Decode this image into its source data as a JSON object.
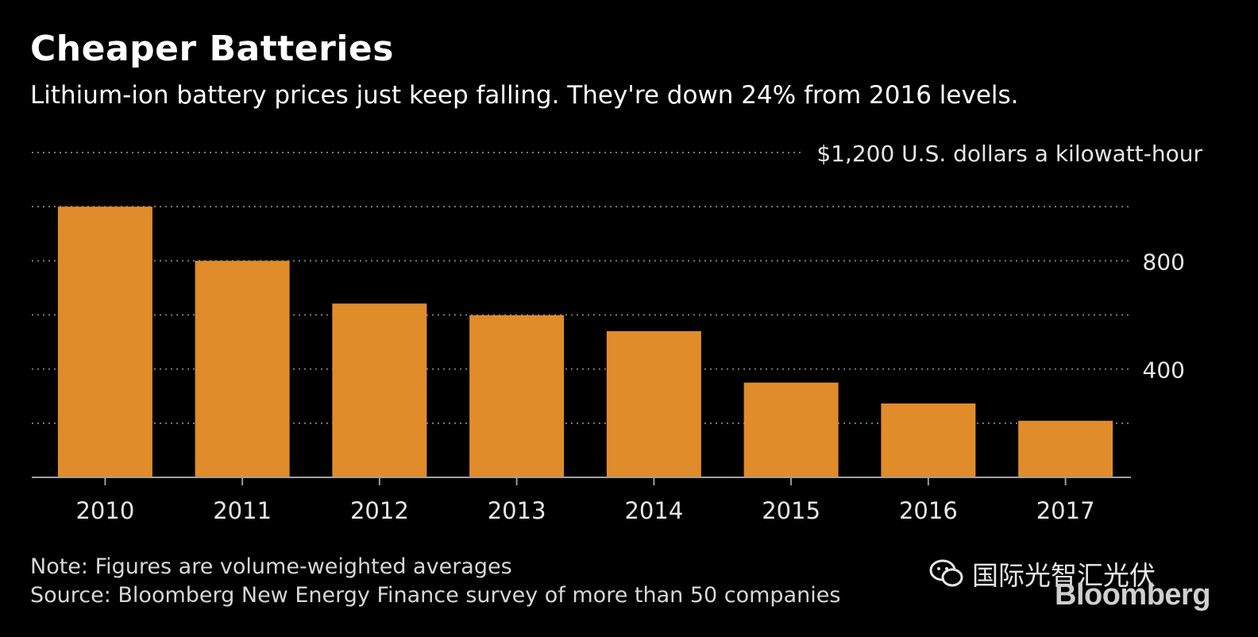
{
  "header": {
    "title": "Cheaper Batteries",
    "subtitle": "Lithium-ion battery prices just keep falling. They're down 24% from 2016 levels."
  },
  "footer": {
    "note": "Note: Figures are volume-weighted averages",
    "source": "Source: Bloomberg New Energy Finance survey of more than 50 companies"
  },
  "watermark": {
    "text": "国际光智汇光伏",
    "icon": "wechat-icon"
  },
  "logo": {
    "text": "Bloomberg"
  },
  "chart_data": {
    "type": "bar",
    "title": "Cheaper Batteries",
    "subtitle": "Lithium-ion battery prices just keep falling. They're down 24% from 2016 levels.",
    "categories": [
      "2010",
      "2011",
      "2012",
      "2013",
      "2014",
      "2015",
      "2016",
      "2017"
    ],
    "values": [
      1000,
      800,
      642,
      599,
      540,
      350,
      273,
      209
    ],
    "ylabel": "$1,200 U.S. dollars a kilowatt-hour",
    "ylim": [
      0,
      1200
    ],
    "yticks": [
      {
        "value": 800,
        "label": "800"
      },
      {
        "value": 400,
        "label": "400"
      }
    ],
    "gridlines": [
      200,
      400,
      600,
      800,
      1000,
      1200
    ],
    "grid": true,
    "axis_position": "right",
    "bar_color": "#e08c2a",
    "background_color": "#000000"
  }
}
